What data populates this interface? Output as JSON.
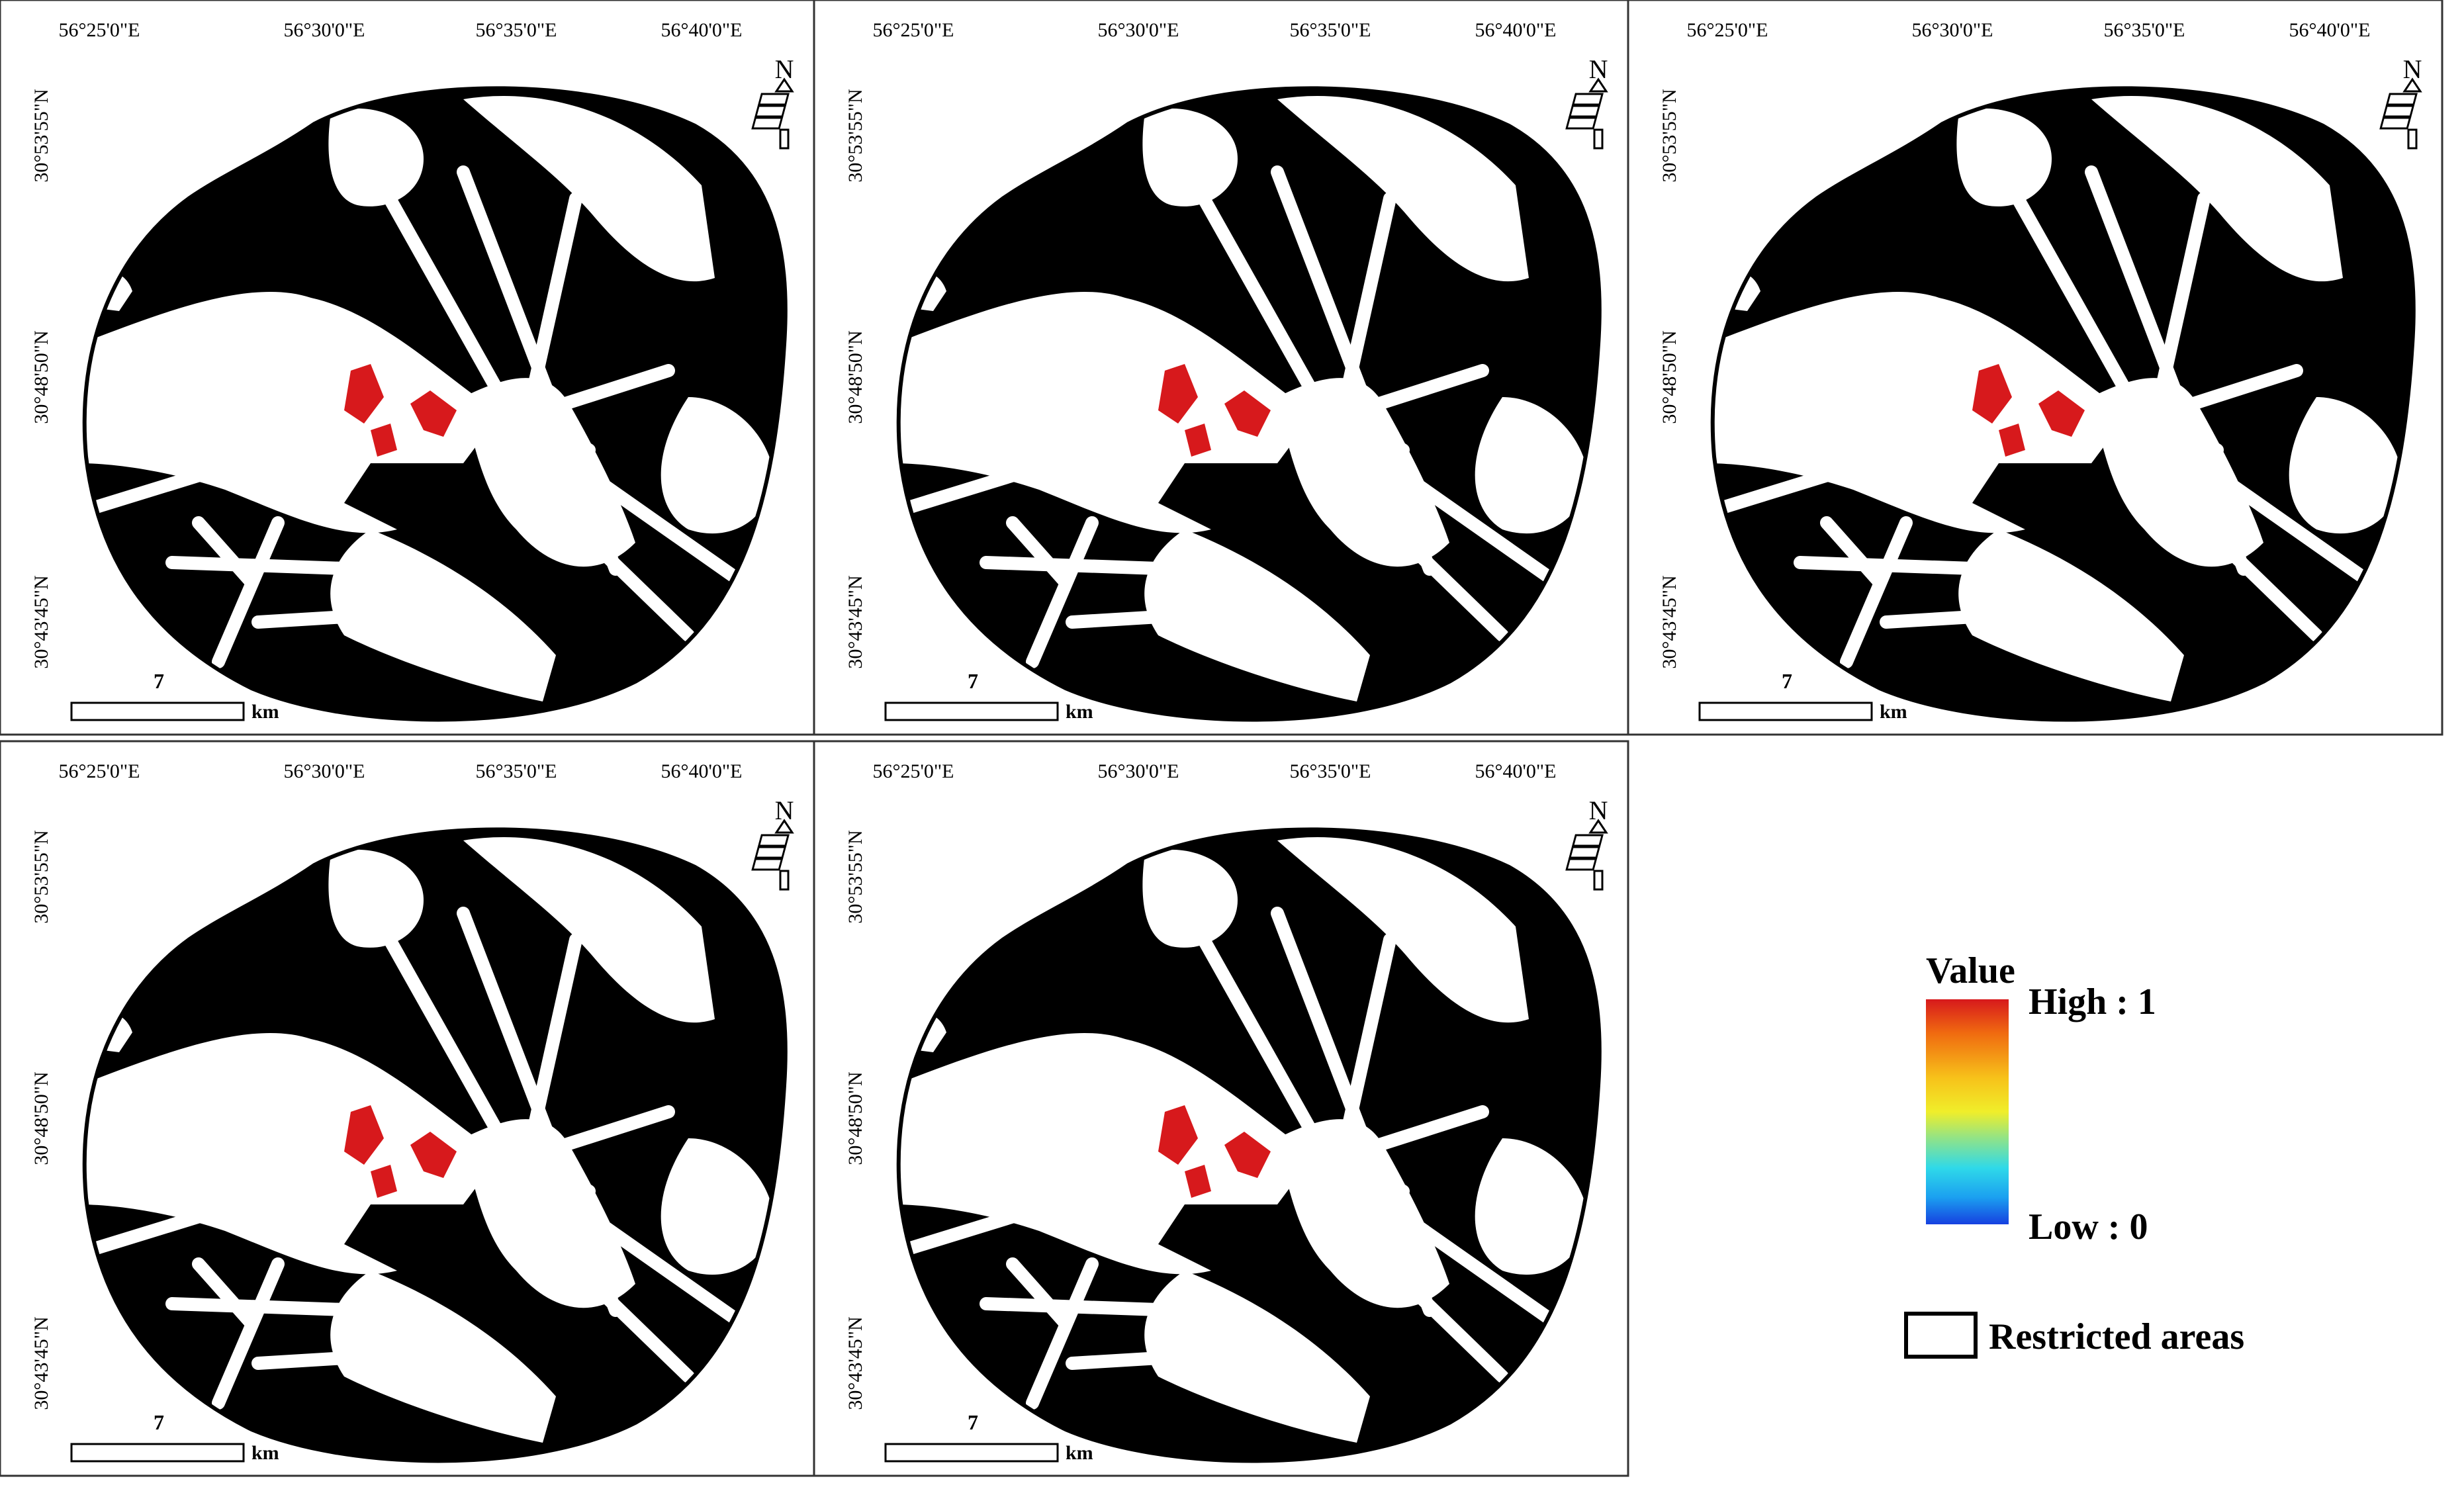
{
  "figure": {
    "panels": [
      {
        "label": "map-1",
        "palette": "wide"
      },
      {
        "label": "map-2",
        "palette": "mid-low"
      },
      {
        "label": "map-3",
        "palette": "mid-high"
      },
      {
        "label": "map-4",
        "palette": "high"
      },
      {
        "label": "map-5",
        "palette": "very-high"
      }
    ],
    "axis_labels": {
      "longitudes": [
        "56°25'0\"E",
        "56°30'0\"E",
        "56°35'0\"E",
        "56°40'0\"E"
      ],
      "latitudes": [
        "30°53'55\"N",
        "30°48'50\"N",
        "30°43'45\"N"
      ]
    },
    "scale_bar": {
      "value": "7",
      "unit": "km"
    },
    "north_arrow": {
      "letter": "N"
    },
    "legend": {
      "title": "Value",
      "high_label": "High : 1",
      "low_label": "Low : 0",
      "restricted_label": "Restricted areas",
      "gradient_colors": [
        "#d7191c",
        "#f06a10",
        "#f7c21a",
        "#f0ee2a",
        "#8fe389",
        "#2fd9e9",
        "#1ba0f0",
        "#1640e0"
      ]
    }
  }
}
